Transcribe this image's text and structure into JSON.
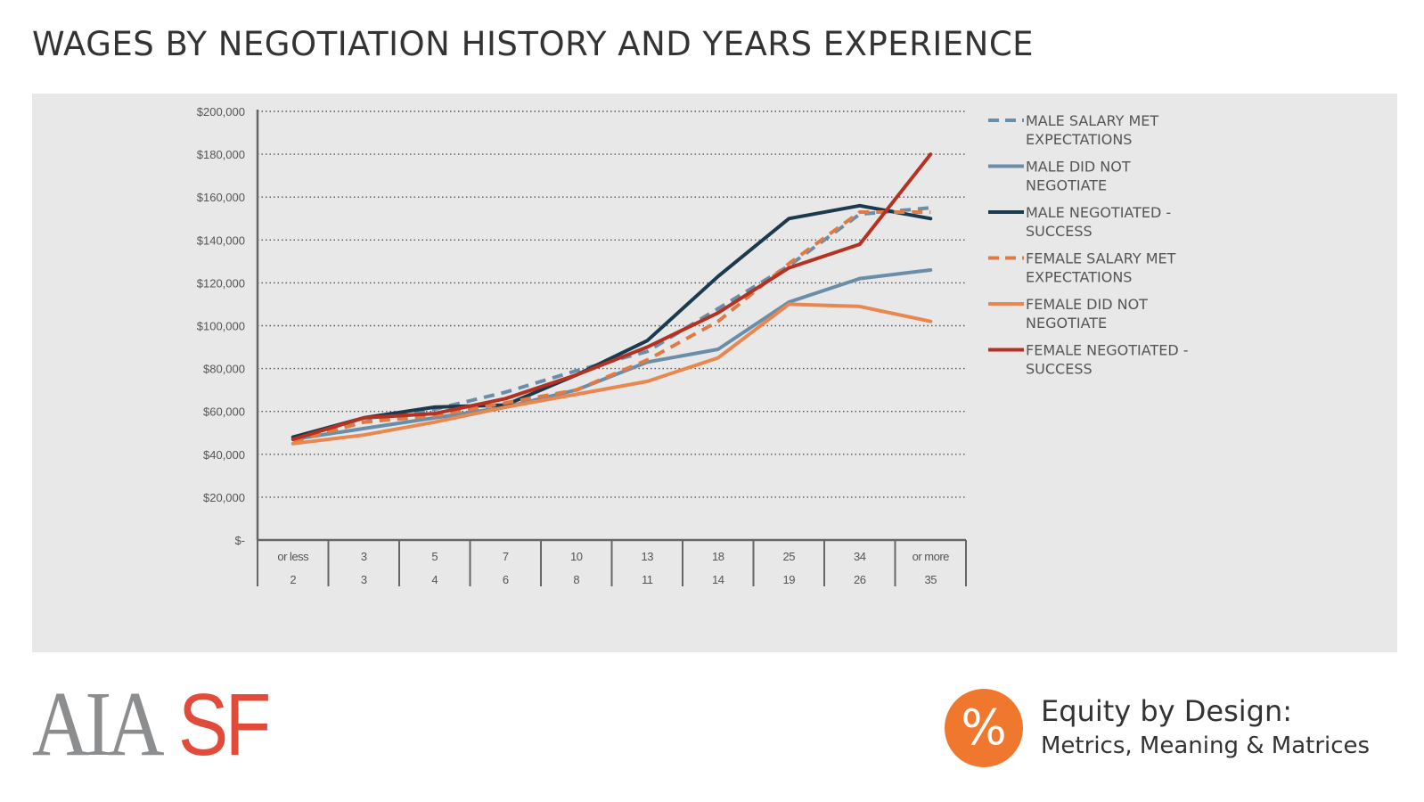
{
  "page": {
    "title": "WAGES BY NEGOTIATION HISTORY AND YEARS EXPERIENCE"
  },
  "branding": {
    "logo_left": "AIA",
    "logo_right": "SF",
    "badge_symbol": "%",
    "badge_icon": "percent-icon",
    "badge_color": "#f0782e",
    "equity_title": "Equity by Design:",
    "equity_subtitle": "Metrics, Meaning & Matrices"
  },
  "chart_data": {
    "type": "line",
    "title": "",
    "xlabel": "",
    "ylabel": "",
    "ylim": [
      0,
      200000
    ],
    "grid": true,
    "legend_position": "right",
    "y_ticks": [
      {
        "value": 0,
        "label": "$-"
      },
      {
        "value": 20000,
        "label": "$20,000"
      },
      {
        "value": 40000,
        "label": "$40,000"
      },
      {
        "value": 60000,
        "label": "$60,000"
      },
      {
        "value": 80000,
        "label": "$80,000"
      },
      {
        "value": 100000,
        "label": "$100,000"
      },
      {
        "value": 120000,
        "label": "$120,000"
      },
      {
        "value": 140000,
        "label": "$140,000"
      },
      {
        "value": 160000,
        "label": "$160,000"
      },
      {
        "value": 180000,
        "label": "$180,000"
      },
      {
        "value": 200000,
        "label": "$200,000"
      }
    ],
    "categories": [
      {
        "upper": "or less",
        "lower": "2"
      },
      {
        "upper": "3",
        "lower": "3"
      },
      {
        "upper": "5",
        "lower": "4"
      },
      {
        "upper": "7",
        "lower": "6"
      },
      {
        "upper": "10",
        "lower": "8"
      },
      {
        "upper": "13",
        "lower": "11"
      },
      {
        "upper": "18",
        "lower": "14"
      },
      {
        "upper": "25",
        "lower": "19"
      },
      {
        "upper": "34",
        "lower": "26"
      },
      {
        "upper": "or more",
        "lower": "35"
      }
    ],
    "series": [
      {
        "name": "MALE SALARY MET EXPECTATIONS",
        "color": "#6b8ea8",
        "dashed": true,
        "values": [
          46000,
          55000,
          61000,
          69000,
          79000,
          88000,
          108000,
          128000,
          152000,
          155000
        ]
      },
      {
        "name": "MALE DID NOT NEGOTIATE",
        "color": "#6b8ea8",
        "dashed": false,
        "values": [
          47000,
          52000,
          57000,
          62000,
          70000,
          83000,
          89000,
          111000,
          122000,
          126000
        ]
      },
      {
        "name": "MALE NEGOTIATED - SUCCESS",
        "color": "#1c3a4d",
        "dashed": false,
        "values": [
          48000,
          57000,
          62000,
          63000,
          77000,
          93000,
          123000,
          150000,
          156000,
          150000
        ]
      },
      {
        "name": "FEMALE SALARY MET EXPECTATIONS",
        "color": "#e07a45",
        "dashed": true,
        "values": [
          46000,
          55000,
          58000,
          64000,
          70000,
          84000,
          102000,
          129000,
          153000,
          153000
        ]
      },
      {
        "name": "FEMALE DID NOT NEGOTIATE",
        "color": "#e8874f",
        "dashed": false,
        "values": [
          45000,
          49000,
          55000,
          62000,
          68000,
          74000,
          85000,
          110000,
          109000,
          102000
        ]
      },
      {
        "name": "FEMALE NEGOTIATED - SUCCESS",
        "color": "#b53121",
        "dashed": false,
        "values": [
          47000,
          57000,
          59000,
          66000,
          77000,
          90000,
          106000,
          127000,
          138000,
          180000
        ]
      }
    ]
  }
}
